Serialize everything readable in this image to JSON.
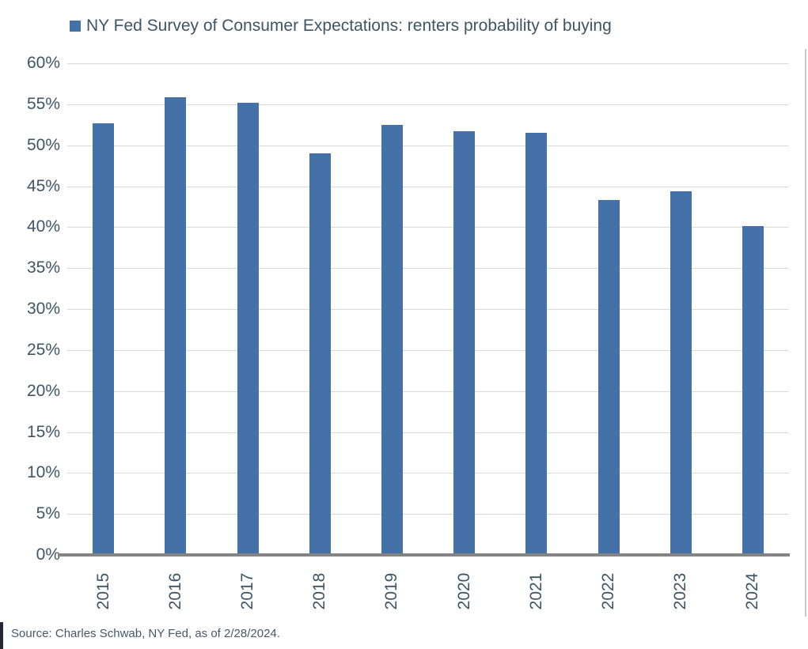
{
  "legend": {
    "label": "NY Fed Survey of Consumer Expectations: renters probability of buying"
  },
  "footer": {
    "source": "Source: Charles Schwab, NY Fed, as of 2/28/2024."
  },
  "colors": {
    "bar": "#4472a8",
    "text": "#3d5565",
    "gridline": "#d9d9d9",
    "axis_line": "#848484",
    "right_border": "#c9c9c9",
    "footer_stripe": "#232a33",
    "source_text": "#44586a"
  },
  "chart_data": {
    "type": "bar",
    "title": "NY Fed Survey of Consumer Expectations: renters probability of buying",
    "categories": [
      "2015",
      "2016",
      "2017",
      "2018",
      "2019",
      "2020",
      "2021",
      "2022",
      "2023",
      "2024"
    ],
    "values": [
      52.7,
      55.9,
      55.2,
      49.0,
      52.5,
      51.7,
      51.5,
      43.3,
      44.4,
      40.1
    ],
    "unit": "%",
    "xlabel": "",
    "ylabel": "",
    "ylim": [
      0,
      60
    ],
    "ytick_step": 5,
    "ytick_labels": [
      "0%",
      "5%",
      "10%",
      "15%",
      "20%",
      "25%",
      "30%",
      "35%",
      "40%",
      "45%",
      "50%",
      "55%",
      "60%"
    ],
    "grid": true,
    "legend_position": "top-left",
    "bar_color": "#4472a8"
  }
}
